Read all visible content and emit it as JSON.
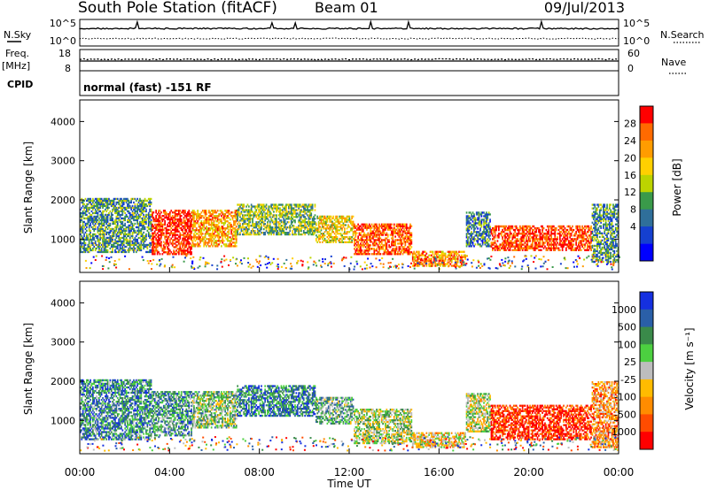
{
  "header": {
    "title": "South Pole Station (fitACF)",
    "beam": "Beam 01",
    "date": "09/Jul/2013"
  },
  "strip": {
    "nsky_label": "N.Sky",
    "nsearch_label": "N.Search",
    "freq_label_1": "Freq.",
    "freq_label_2": "[MHz]",
    "nave_label": "Nave",
    "cpid_label": "CPID",
    "cpid_value": "normal (fast) -151 RF",
    "noise_ticks_left": [
      "10^5",
      "10^0"
    ],
    "noise_ticks_right": [
      "10^5",
      "10^0"
    ],
    "freq_ticks": [
      "18",
      "8"
    ],
    "nave_ticks": [
      "60",
      "0"
    ]
  },
  "power_scale": {
    "label": "Power [dB]",
    "ticks": [
      "28",
      "24",
      "20",
      "16",
      "12",
      "8",
      "4"
    ],
    "colors": [
      "#ff0000",
      "#ff6a00",
      "#ff9c00",
      "#ffd000",
      "#bcd400",
      "#3a9a4a",
      "#2f6f9a",
      "#1540d0",
      "#0000ff"
    ]
  },
  "velocity_scale": {
    "label": "Velocity [m s⁻¹]",
    "ticks": [
      "1000",
      "500",
      "100",
      "25",
      "-25",
      "-100",
      "-500",
      "-1000"
    ],
    "colors": [
      "#1530e0",
      "#2a5fa8",
      "#3a8a4a",
      "#4cd040",
      "#bdbdbd",
      "#ffbb00",
      "#ff8c00",
      "#ff4c00",
      "#ff0000"
    ]
  },
  "chart_data": [
    {
      "type": "heatmap",
      "name": "power",
      "ylabel": "Slant Range [km]",
      "yticks": [
        1000,
        2000,
        3000,
        4000
      ],
      "ylim": [
        150,
        4550
      ],
      "xlim": [
        0,
        24
      ],
      "xticks": [
        "00:00",
        "04:00",
        "08:00",
        "12:00",
        "16:00",
        "20:00",
        "00:00"
      ],
      "xlabel": "Time UT",
      "bands": [
        {
          "t0": 0.0,
          "t1": 3.2,
          "r0": 650,
          "r1": 2050,
          "level": 0.35
        },
        {
          "t0": 3.2,
          "t1": 5.0,
          "r0": 600,
          "r1": 1750,
          "level": 0.95
        },
        {
          "t0": 5.0,
          "t1": 7.0,
          "r0": 800,
          "r1": 1750,
          "level": 0.7
        },
        {
          "t0": 7.0,
          "t1": 10.5,
          "r0": 1100,
          "r1": 1900,
          "level": 0.45
        },
        {
          "t0": 10.5,
          "t1": 12.2,
          "r0": 900,
          "r1": 1600,
          "level": 0.6
        },
        {
          "t0": 12.2,
          "t1": 14.8,
          "r0": 600,
          "r1": 1400,
          "level": 0.85
        },
        {
          "t0": 14.8,
          "t1": 17.2,
          "r0": 300,
          "r1": 700,
          "level": 0.75
        },
        {
          "t0": 17.2,
          "t1": 18.3,
          "r0": 800,
          "r1": 1700,
          "level": 0.3
        },
        {
          "t0": 18.3,
          "t1": 22.8,
          "r0": 700,
          "r1": 1350,
          "level": 0.9
        },
        {
          "t0": 22.8,
          "t1": 24.0,
          "r0": 400,
          "r1": 1900,
          "level": 0.35
        }
      ]
    },
    {
      "type": "heatmap",
      "name": "velocity",
      "ylabel": "Slant Range [km]",
      "yticks": [
        1000,
        2000,
        3000,
        4000
      ],
      "ylim": [
        150,
        4550
      ],
      "xlim": [
        0,
        24
      ],
      "xticks": [
        "00:00",
        "04:00",
        "08:00",
        "12:00",
        "16:00",
        "20:00",
        "00:00"
      ],
      "xlabel": "Time UT",
      "bands": [
        {
          "t0": 0.0,
          "t1": 3.2,
          "r0": 500,
          "r1": 2050,
          "level": 0.75
        },
        {
          "t0": 3.2,
          "t1": 5.0,
          "r0": 600,
          "r1": 1750,
          "level": 0.7
        },
        {
          "t0": 5.0,
          "t1": 7.0,
          "r0": 800,
          "r1": 1750,
          "level": 0.6
        },
        {
          "t0": 7.0,
          "t1": 10.5,
          "r0": 1100,
          "r1": 1900,
          "level": 0.78
        },
        {
          "t0": 10.5,
          "t1": 12.2,
          "r0": 900,
          "r1": 1600,
          "level": 0.65
        },
        {
          "t0": 12.2,
          "t1": 14.8,
          "r0": 400,
          "r1": 1300,
          "level": 0.55
        },
        {
          "t0": 14.8,
          "t1": 17.2,
          "r0": 300,
          "r1": 700,
          "level": 0.4
        },
        {
          "t0": 17.2,
          "t1": 18.3,
          "r0": 700,
          "r1": 1700,
          "level": 0.5
        },
        {
          "t0": 18.3,
          "t1": 22.8,
          "r0": 500,
          "r1": 1400,
          "level": 0.1
        },
        {
          "t0": 22.8,
          "t1": 24.0,
          "r0": 300,
          "r1": 2000,
          "level": 0.3
        }
      ]
    }
  ]
}
